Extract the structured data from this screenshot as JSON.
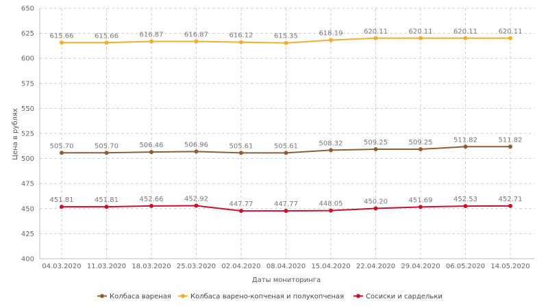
{
  "chart_data": {
    "type": "line",
    "xlabel": "Даты мониторинга",
    "ylabel": "Цена в рублях",
    "ylim": [
      400,
      650
    ],
    "yticks": [
      400,
      425,
      450,
      475,
      500,
      525,
      550,
      575,
      600,
      625,
      650
    ],
    "grid": true,
    "legend_position": "bottom",
    "categories": [
      "04.03.2020",
      "11.03.2020",
      "18.03.2020",
      "25.03.2020",
      "02.04.2020",
      "08.04.2020",
      "15.04.2020",
      "22.04.2020",
      "29.04.2020",
      "06.05.2020",
      "14.05.2020"
    ],
    "series": [
      {
        "name": "Колбаса вареная",
        "color": "#8b5e34",
        "values": [
          505.7,
          505.7,
          506.46,
          506.96,
          505.61,
          505.61,
          508.32,
          509.25,
          509.25,
          511.82,
          511.82
        ],
        "labels": [
          "505.70",
          "505.70",
          "506.46",
          "506.96",
          "505.61",
          "505.61",
          "508.32",
          "509.25",
          "509.25",
          "511.82",
          "511.82"
        ]
      },
      {
        "name": "Колбаса варено-копченая и полукопченая",
        "color": "#f0ad2e",
        "values": [
          615.66,
          615.66,
          616.87,
          616.87,
          616.12,
          615.35,
          618.19,
          620.11,
          620.11,
          620.11,
          620.11
        ],
        "labels": [
          "615.66",
          "615.66",
          "616.87",
          "616.87",
          "616.12",
          "615.35",
          "618.19",
          "620.11",
          "620.11",
          "620.11",
          "620.11"
        ]
      },
      {
        "name": "Сосиски и сардельки",
        "color": "#c8102e",
        "values": [
          451.81,
          451.81,
          452.66,
          452.92,
          447.77,
          447.77,
          448.05,
          450.2,
          451.69,
          452.53,
          452.71
        ],
        "labels": [
          "451.81",
          "451.81",
          "452.66",
          "452.92",
          "447.77",
          "447.77",
          "448.05",
          "450.20",
          "451.69",
          "452.53",
          "452.71"
        ]
      }
    ]
  }
}
